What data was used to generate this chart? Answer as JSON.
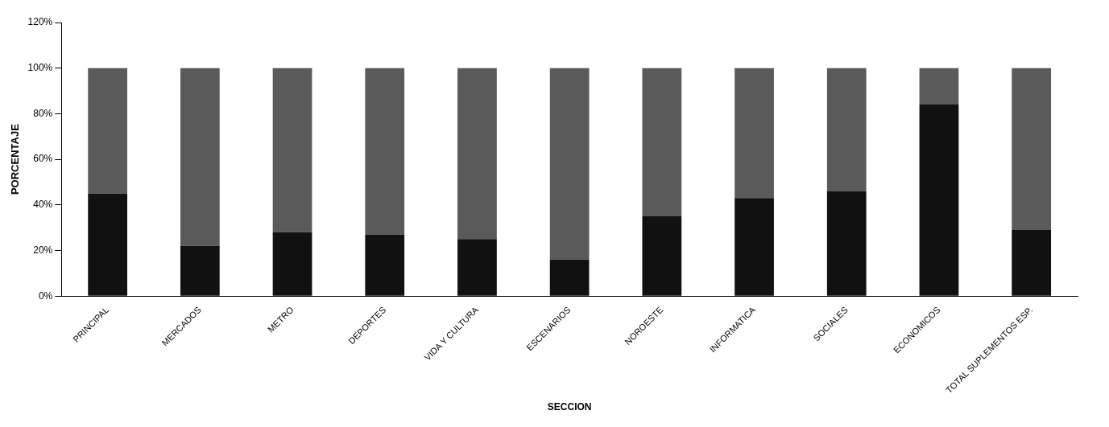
{
  "chart_data": {
    "type": "bar",
    "stacked": true,
    "xlabel": "SECCION",
    "ylabel": "PORCENTAJE",
    "categories": [
      "PRINCIPAL",
      "MERCADOS",
      "METRO",
      "DEPORTES",
      "VIDA Y CULTURA",
      "ESCENARIOS",
      "NOROESTE",
      "INFORMATICA",
      "SOCIALES",
      "ECONOMICOS",
      "TOTAL SUPLEMENTOS ESP."
    ],
    "series": [
      {
        "color": "#111111",
        "values": [
          45,
          22,
          28,
          27,
          25,
          16,
          35,
          43,
          46,
          84,
          29
        ]
      },
      {
        "color": "#5a5a5a",
        "values": [
          55,
          78,
          72,
          73,
          75,
          84,
          65,
          57,
          54,
          16,
          71
        ]
      }
    ],
    "ylim": [
      0,
      120
    ],
    "yticks": [
      {
        "value": 0,
        "label": "0%"
      },
      {
        "value": 20,
        "label": "20%"
      },
      {
        "value": 40,
        "label": "40%"
      },
      {
        "value": 60,
        "label": "60%"
      },
      {
        "value": 80,
        "label": "80%"
      },
      {
        "value": 100,
        "label": "100%"
      },
      {
        "value": 120,
        "label": "120%"
      }
    ],
    "grid": false,
    "legend": false
  }
}
